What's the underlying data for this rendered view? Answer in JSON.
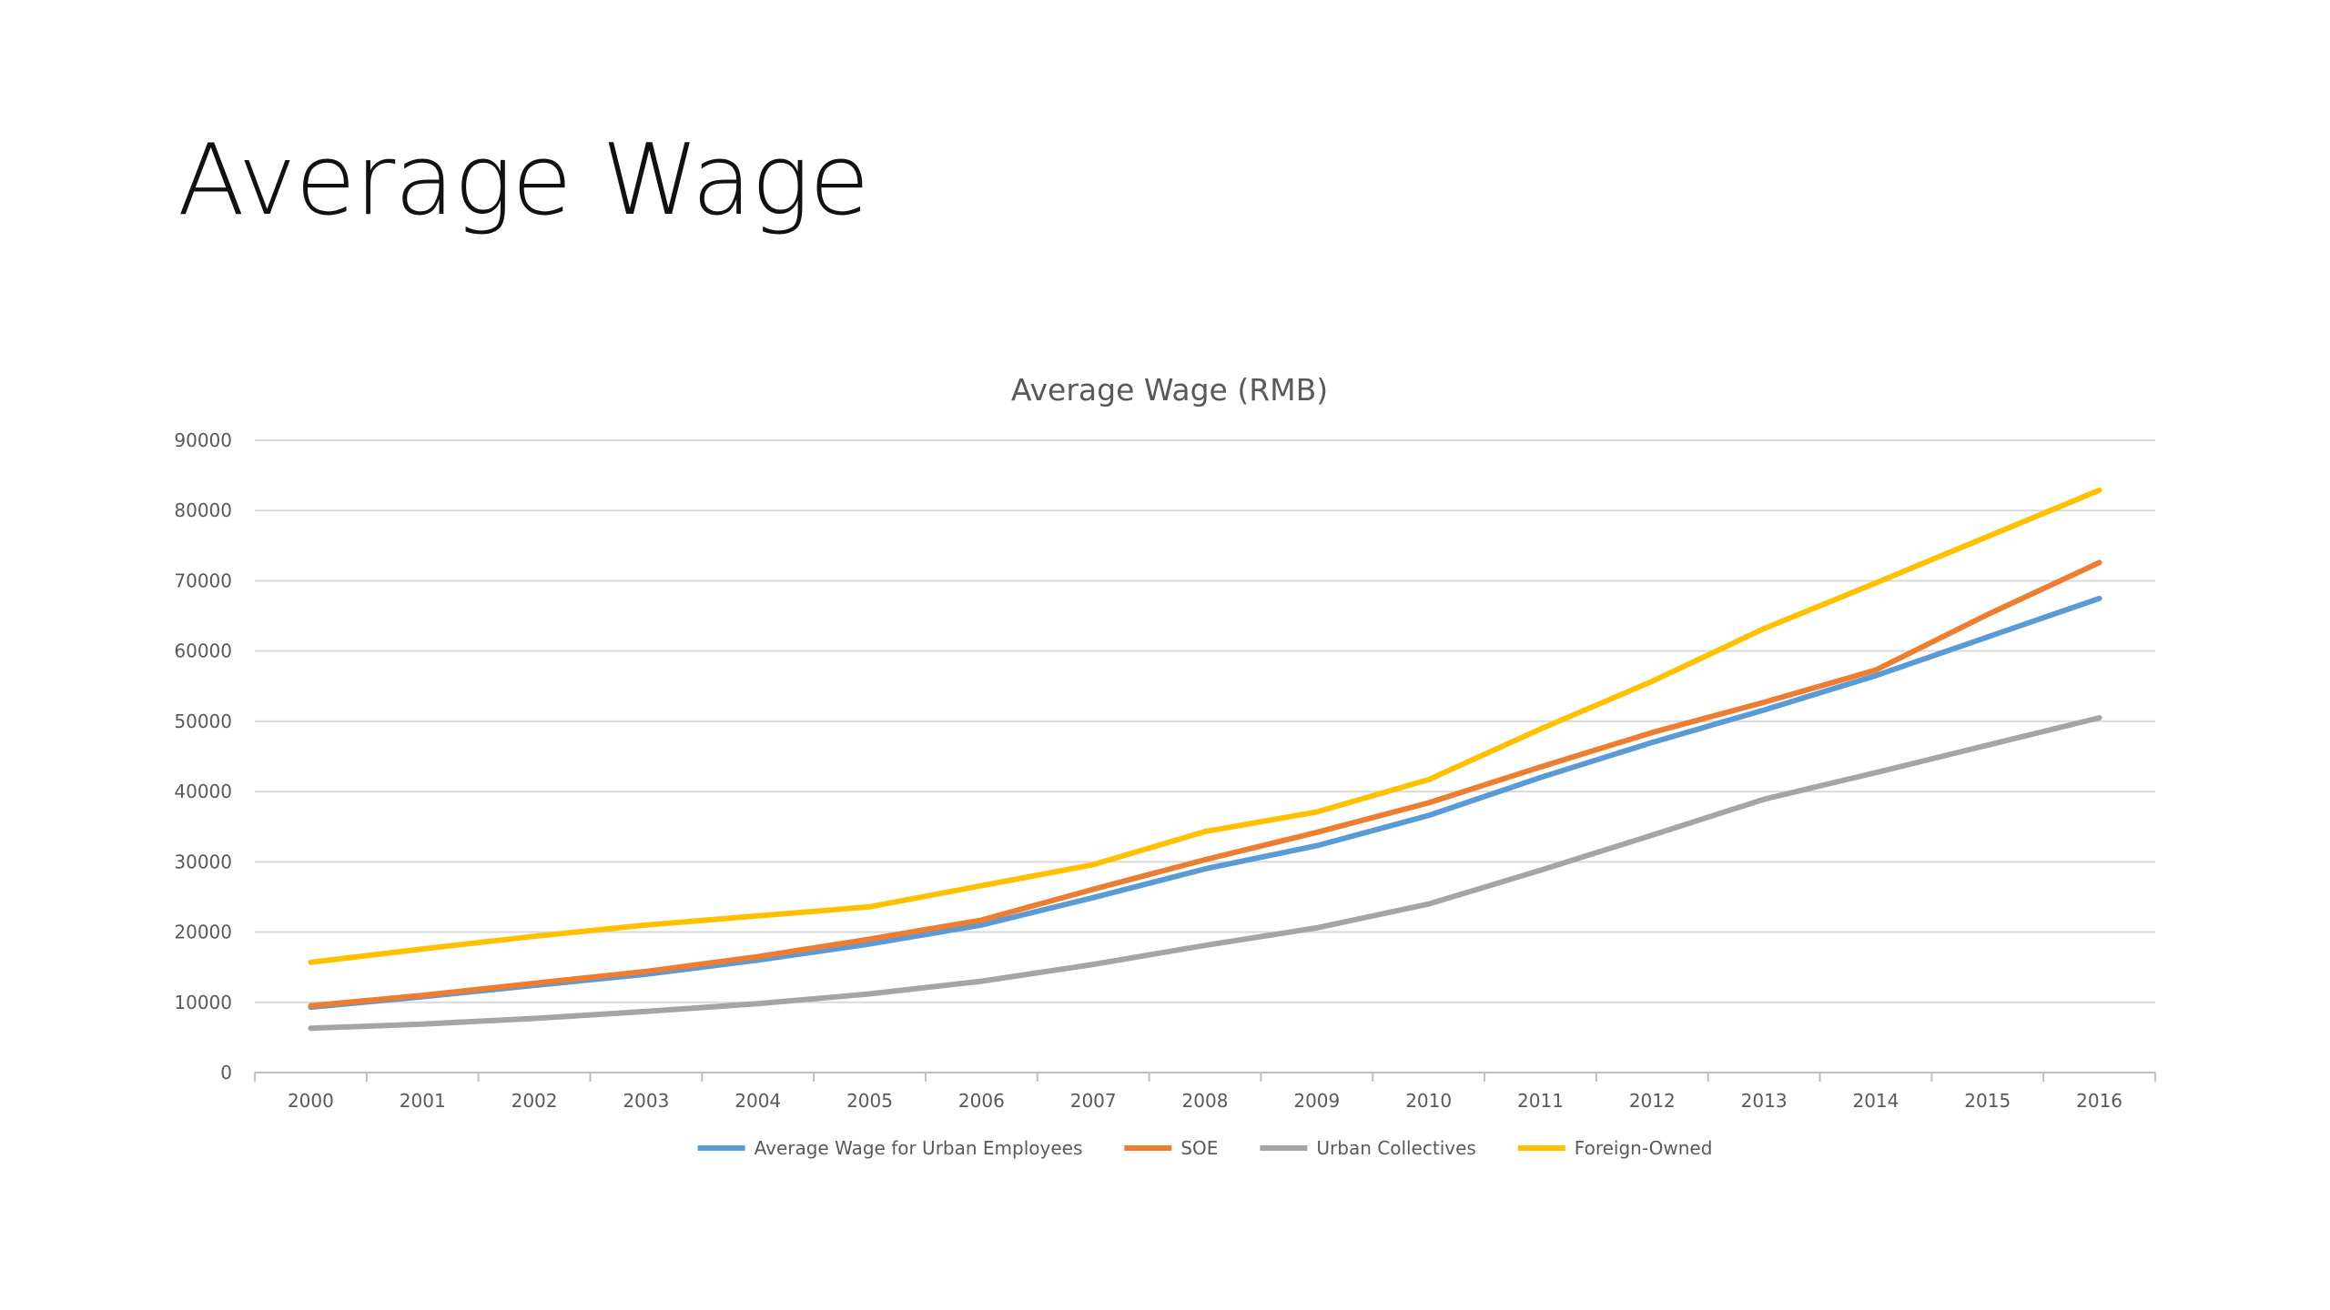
{
  "slide": {
    "title": "Average Wage"
  },
  "chart_data": {
    "type": "line",
    "title": "Average Wage (RMB)",
    "xlabel": "",
    "ylabel": "",
    "ylim": [
      0,
      90000
    ],
    "yticks": [
      0,
      10000,
      20000,
      30000,
      40000,
      50000,
      60000,
      70000,
      80000,
      90000
    ],
    "grid": true,
    "legend_position": "bottom",
    "categories": [
      "2000",
      "2001",
      "2002",
      "2003",
      "2004",
      "2005",
      "2006",
      "2007",
      "2008",
      "2009",
      "2010",
      "2011",
      "2012",
      "2013",
      "2014",
      "2015",
      "2016"
    ],
    "series": [
      {
        "name": "Average Wage for Urban Employees",
        "color": "#5b9bd5",
        "values": [
          9300,
          10800,
          12400,
          14000,
          16000,
          18300,
          21000,
          24900,
          29000,
          32300,
          36600,
          42000,
          47000,
          51600,
          56500,
          62000,
          67500
        ]
      },
      {
        "name": "SOE",
        "color": "#ed7d31",
        "values": [
          9500,
          11000,
          12700,
          14400,
          16500,
          19000,
          21700,
          26100,
          30300,
          34200,
          38400,
          43500,
          48400,
          52700,
          57300,
          65200,
          72600
        ]
      },
      {
        "name": "Urban Collectives",
        "color": "#a5a5a5",
        "values": [
          6300,
          6900,
          7700,
          8700,
          9800,
          11200,
          13000,
          15400,
          18100,
          20600,
          24000,
          28800,
          33800,
          38900,
          42700,
          46600,
          50500
        ]
      },
      {
        "name": "Foreign-Owned",
        "color": "#ffc000",
        "values": [
          15700,
          17600,
          19400,
          21000,
          22300,
          23600,
          26600,
          29600,
          34300,
          37100,
          41700,
          48900,
          55700,
          63200,
          69700,
          76300,
          82900
        ]
      }
    ]
  }
}
